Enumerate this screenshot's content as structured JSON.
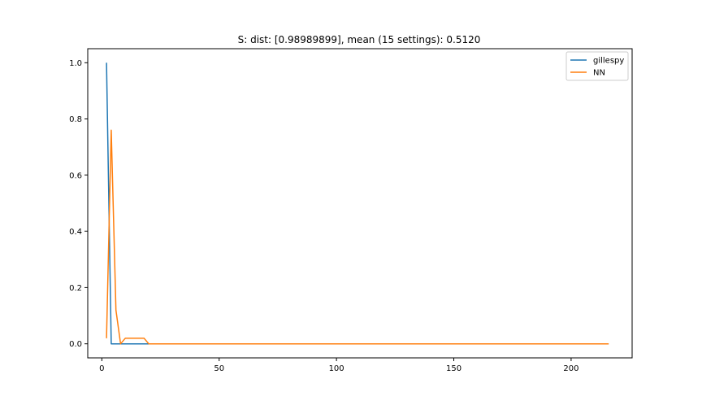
{
  "chart_data": {
    "type": "line",
    "title": "S: dist: [0.98989899], mean (15 settings): 0.5120",
    "xlabel": "",
    "ylabel": "",
    "xlim": [
      -6,
      226
    ],
    "ylim": [
      -0.05,
      1.05
    ],
    "xticks": [
      0,
      50,
      100,
      150,
      200
    ],
    "xtick_labels": [
      "0",
      "50",
      "100",
      "150",
      "200"
    ],
    "yticks": [
      0.0,
      0.2,
      0.4,
      0.6,
      0.8,
      1.0
    ],
    "ytick_labels": [
      "0.0",
      "0.2",
      "0.4",
      "0.6",
      "0.8",
      "1.0"
    ],
    "grid": false,
    "legend_position": "top-right",
    "series": [
      {
        "name": "gillespy",
        "color": "#1f77b4",
        "x": [
          2,
          4,
          6,
          8,
          10,
          12,
          14,
          16,
          18,
          20,
          22,
          216
        ],
        "y": [
          1.0,
          0.0,
          0.0,
          0.0,
          0.0,
          0.0,
          0.0,
          0.0,
          0.0,
          0.0,
          0.0,
          0.0
        ]
      },
      {
        "name": "NN",
        "color": "#ff7f0e",
        "x": [
          2,
          4,
          6,
          8,
          10,
          12,
          14,
          16,
          18,
          20,
          22,
          216
        ],
        "y": [
          0.02,
          0.76,
          0.12,
          0.0,
          0.02,
          0.02,
          0.02,
          0.02,
          0.02,
          0.0,
          0.0,
          0.0
        ]
      }
    ]
  }
}
